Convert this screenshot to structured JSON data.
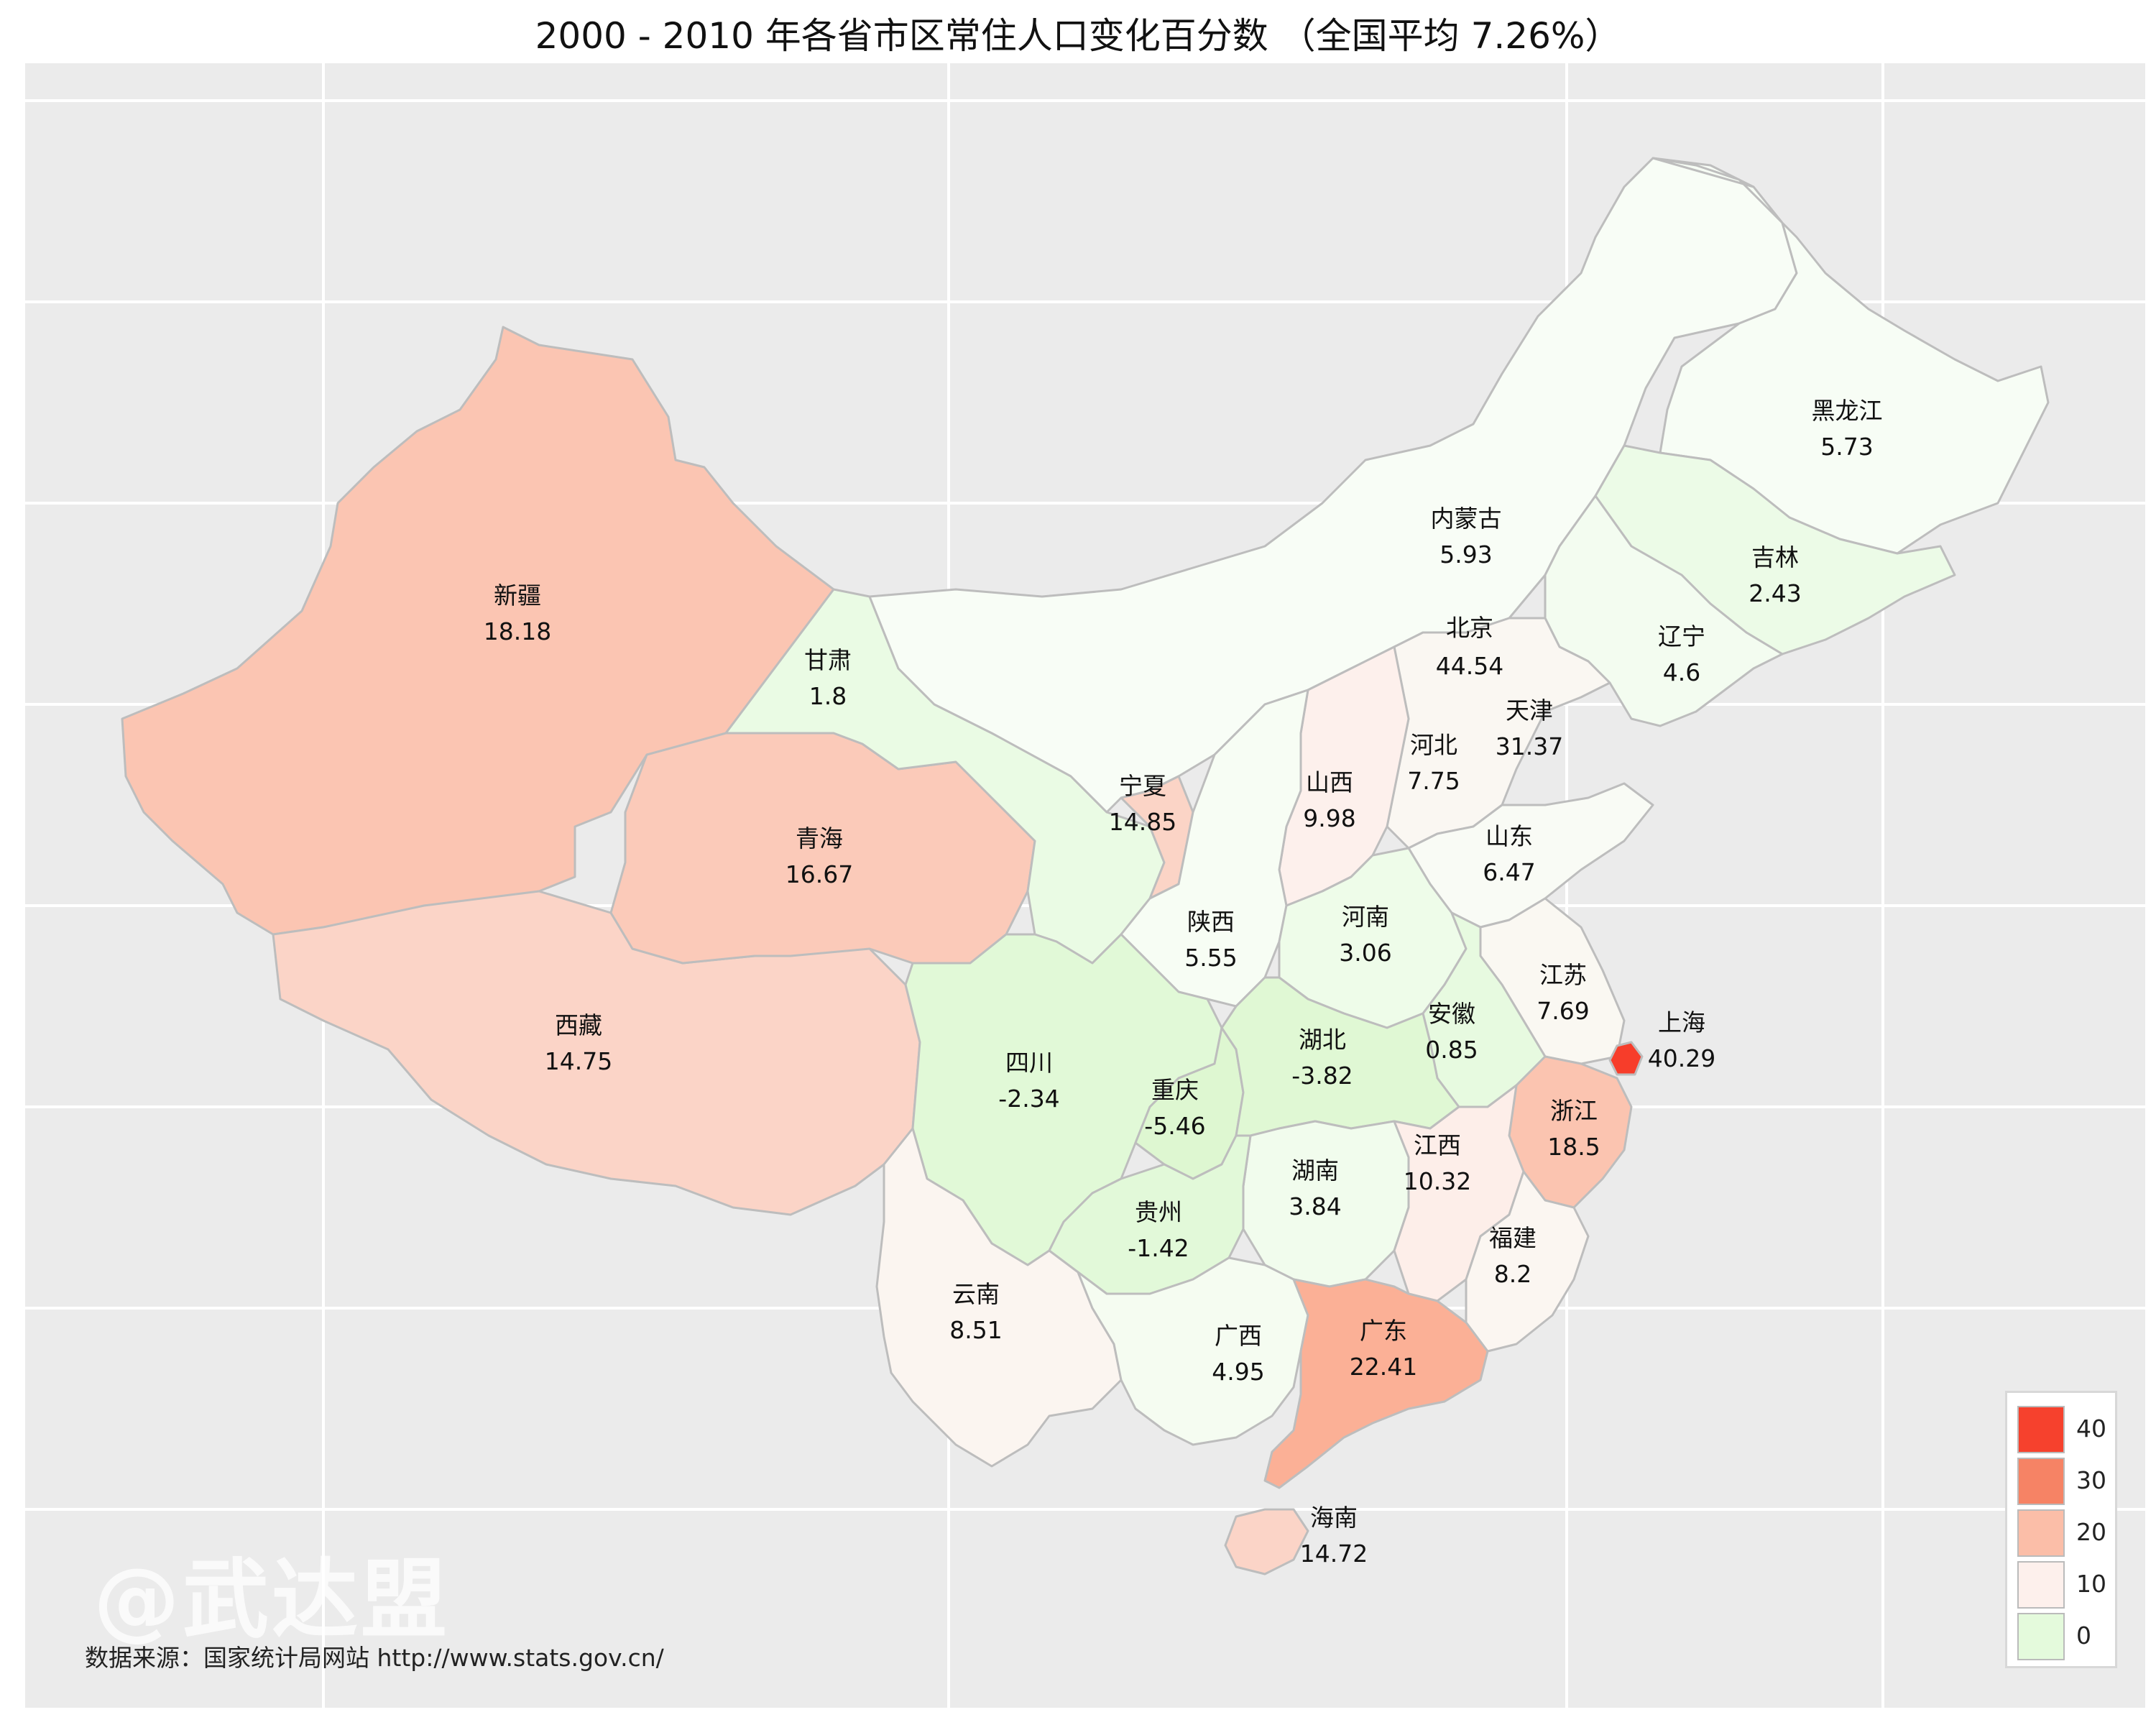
{
  "title": "2000 - 2010 年各省市区常住人口变化百分数 （全国平均 7.26%）",
  "watermark": "@武达盟",
  "source": "数据来源：国家统计局网站 http://www.stats.gov.cn/",
  "colors": {
    "panel": "#ebebeb",
    "grid": "#ffffff",
    "border": "#bdbdbd"
  },
  "legend": {
    "labels": [
      "40",
      "30",
      "20",
      "10",
      "0"
    ],
    "values": [
      40,
      30,
      20,
      10,
      0
    ]
  },
  "provinces": [
    {
      "name": "新疆",
      "value": "18.18"
    },
    {
      "name": "西藏",
      "value": "14.75"
    },
    {
      "name": "青海",
      "value": "16.67"
    },
    {
      "name": "甘肃",
      "value": "1.8"
    },
    {
      "name": "内蒙古",
      "value": "5.93"
    },
    {
      "name": "黑龙江",
      "value": "5.73"
    },
    {
      "name": "吉林",
      "value": "2.43"
    },
    {
      "name": "辽宁",
      "value": "4.6"
    },
    {
      "name": "北京",
      "value": "44.54"
    },
    {
      "name": "天津",
      "value": "31.37"
    },
    {
      "name": "河北",
      "value": "7.75"
    },
    {
      "name": "山西",
      "value": "9.98"
    },
    {
      "name": "山东",
      "value": "6.47"
    },
    {
      "name": "宁夏",
      "value": "14.85"
    },
    {
      "name": "陕西",
      "value": "5.55"
    },
    {
      "name": "河南",
      "value": "3.06"
    },
    {
      "name": "江苏",
      "value": "7.69"
    },
    {
      "name": "安徽",
      "value": "0.85"
    },
    {
      "name": "上海",
      "value": "40.29"
    },
    {
      "name": "四川",
      "value": "-2.34"
    },
    {
      "name": "重庆",
      "value": "-5.46"
    },
    {
      "name": "湖北",
      "value": "-3.82"
    },
    {
      "name": "浙江",
      "value": "18.5"
    },
    {
      "name": "湖南",
      "value": "3.84"
    },
    {
      "name": "江西",
      "value": "10.32"
    },
    {
      "name": "贵州",
      "value": "-1.42"
    },
    {
      "name": "福建",
      "value": "8.2"
    },
    {
      "name": "云南",
      "value": "8.51"
    },
    {
      "name": "广西",
      "value": "4.95"
    },
    {
      "name": "广东",
      "value": "22.41"
    },
    {
      "name": "海南",
      "value": "14.72"
    }
  ]
}
